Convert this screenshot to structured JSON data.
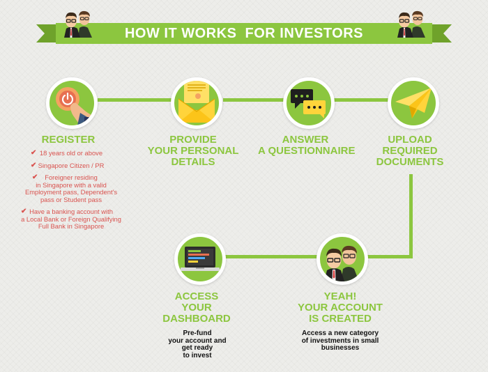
{
  "banner": {
    "title": "HOW IT WORKS  FOR INVESTORS"
  },
  "colors": {
    "accent": "#8cc63f",
    "dark_green": "#4c7a17",
    "red": "#d9534f",
    "text": "#111111"
  },
  "steps": [
    {
      "icon": "hand-press-button-icon",
      "title_lines": [
        "REGISTER"
      ]
    },
    {
      "icon": "envelope-letter-icon",
      "title_lines": [
        "PROVIDE",
        "YOUR PERSONAL",
        "DETAILS"
      ]
    },
    {
      "icon": "chat-bubbles-icon",
      "title_lines": [
        "ANSWER",
        "A QUESTIONNAIRE"
      ]
    },
    {
      "icon": "paper-plane-icon",
      "title_lines": [
        "UPLOAD",
        "REQUIRED",
        "DOCUMENTS"
      ]
    },
    {
      "icon": "two-men-avatar-icon",
      "title_lines": [
        "YEAH!",
        "YOUR ACCOUNT",
        "IS CREATED"
      ]
    },
    {
      "icon": "laptop-dashboard-icon",
      "title_lines": [
        "ACCESS",
        "YOUR",
        "DASHBOARD"
      ]
    }
  ],
  "register_requirements": [
    {
      "lines": [
        "18 years old or above"
      ]
    },
    {
      "lines": [
        "Singapore Citizen / PR"
      ]
    },
    {
      "lines": [
        "Foreigner residing",
        "in Singapore with a valid",
        "Employment pass, Dependent's",
        "pass or Student pass"
      ]
    },
    {
      "lines": [
        "Have a banking account with",
        "a Local Bank or Foreign Qualifying",
        "Full Bank in Singapore"
      ]
    }
  ],
  "account_created_desc": {
    "lines": [
      "Access a new category",
      "of investments in small",
      "businesses"
    ]
  },
  "dashboard_desc": {
    "lines": [
      "Pre-fund",
      "your account and",
      "get ready",
      "to invest"
    ]
  }
}
